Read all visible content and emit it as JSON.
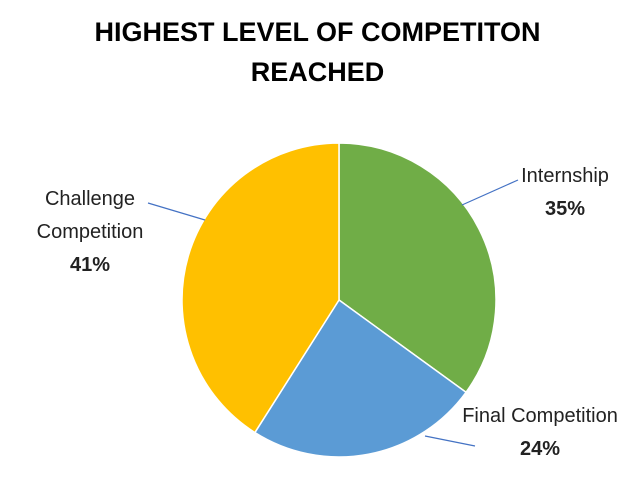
{
  "chart_data": {
    "type": "pie",
    "title": "HIGHEST LEVEL OF COMPETITON REACHED",
    "categories": [
      "Internship",
      "Final Competition",
      "Challenge Competition"
    ],
    "values": [
      35,
      24,
      41
    ],
    "value_labels": [
      "35%",
      "24%",
      "41%"
    ],
    "colors": [
      "#70ad47",
      "#5b9bd5",
      "#ffc000"
    ]
  }
}
